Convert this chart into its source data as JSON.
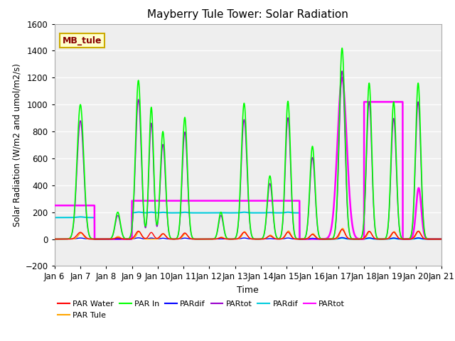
{
  "title": "Mayberry Tule Tower: Solar Radiation",
  "xlabel": "Time",
  "ylabel": "Solar Radiation (W/m2 and umol/m2/s)",
  "ylim": [
    -200,
    1600
  ],
  "x_tick_labels": [
    "Jan 6",
    "Jan 7",
    "Jan 8",
    "Jan 9",
    "Jan 10",
    "Jan 11",
    "Jan 12",
    "Jan 13",
    "Jan 14",
    "Jan 15",
    "Jan 16",
    "Jan 17",
    "Jan 18",
    "Jan 19",
    "Jan 20",
    "Jan 21"
  ],
  "legend_label": "MB_tule",
  "series": {
    "PAR Water": {
      "color": "#ff0000",
      "lw": 1.0
    },
    "PAR Tule": {
      "color": "#ffa500",
      "lw": 1.0
    },
    "PAR In": {
      "color": "#00ff00",
      "lw": 1.2
    },
    "PARdif_blue": {
      "color": "#0000ff",
      "lw": 1.0
    },
    "PARtot_purple": {
      "color": "#9900cc",
      "lw": 1.0
    },
    "PARdif_cyan": {
      "color": "#00ccdd",
      "lw": 1.5
    },
    "PARtot_magenta": {
      "color": "#ff00ff",
      "lw": 1.8
    }
  },
  "plot_bg": "#eeeeee",
  "grid_color": "#ffffff",
  "mb_box_fc": "#ffffcc",
  "mb_box_ec": "#ccaa00",
  "mb_text_color": "#880000"
}
